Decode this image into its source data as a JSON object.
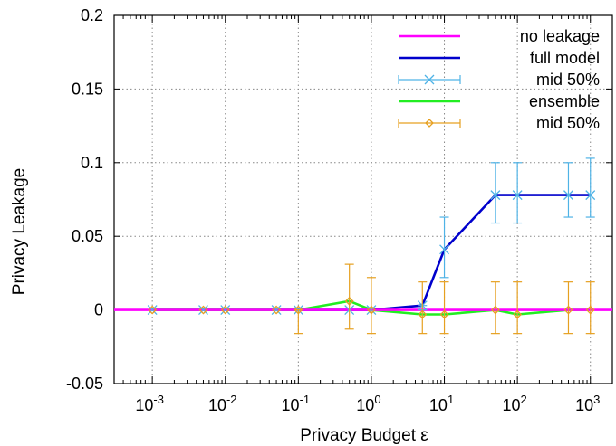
{
  "chart_data": {
    "type": "line",
    "xlabel": "Privacy Budget ε",
    "ylabel": "Privacy Leakage",
    "xscale": "log",
    "xlim": [
      0.0003,
      2000
    ],
    "ylim": [
      -0.05,
      0.2
    ],
    "grid": true,
    "legend_position": "top-right",
    "x_ticks": [
      {
        "base": "10",
        "exp": "-3",
        "value": 0.001
      },
      {
        "base": "10",
        "exp": "-2",
        "value": 0.01
      },
      {
        "base": "10",
        "exp": "-1",
        "value": 0.1
      },
      {
        "base": "10",
        "exp": "0",
        "value": 1
      },
      {
        "base": "10",
        "exp": "1",
        "value": 10
      },
      {
        "base": "10",
        "exp": "2",
        "value": 100
      },
      {
        "base": "10",
        "exp": "3",
        "value": 1000
      }
    ],
    "y_ticks": [
      {
        "label": "-0.05",
        "value": -0.05
      },
      {
        "label": "0",
        "value": 0
      },
      {
        "label": "0.05",
        "value": 0.05
      },
      {
        "label": "0.1",
        "value": 0.1
      },
      {
        "label": "0.15",
        "value": 0.15
      },
      {
        "label": "0.2",
        "value": 0.2
      }
    ],
    "series": [
      {
        "name": "no leakage",
        "color": "#ff00ff",
        "style": "line",
        "points": [
          {
            "x": 0.0003,
            "y": 0
          },
          {
            "x": 2000,
            "y": 0
          }
        ]
      },
      {
        "name": "full model",
        "color": "#0000cc",
        "style": "line",
        "points": [
          {
            "x": 0.001,
            "y": 0
          },
          {
            "x": 0.005,
            "y": 0
          },
          {
            "x": 0.01,
            "y": 0
          },
          {
            "x": 0.05,
            "y": 0
          },
          {
            "x": 0.1,
            "y": 0
          },
          {
            "x": 0.5,
            "y": 0
          },
          {
            "x": 1,
            "y": 0
          },
          {
            "x": 5,
            "y": 0.003
          },
          {
            "x": 10,
            "y": 0.041
          },
          {
            "x": 50,
            "y": 0.078
          },
          {
            "x": 100,
            "y": 0.078
          },
          {
            "x": 500,
            "y": 0.078
          },
          {
            "x": 1000,
            "y": 0.078
          }
        ]
      },
      {
        "name": "mid 50%",
        "color": "#4fb3e6",
        "style": "errorbars",
        "marker": "x",
        "points": [
          {
            "x": 0.001,
            "y": 0,
            "low": 0,
            "high": 0
          },
          {
            "x": 0.005,
            "y": 0,
            "low": 0,
            "high": 0
          },
          {
            "x": 0.01,
            "y": 0,
            "low": 0,
            "high": 0
          },
          {
            "x": 0.05,
            "y": 0,
            "low": 0,
            "high": 0
          },
          {
            "x": 0.1,
            "y": 0,
            "low": 0,
            "high": 0
          },
          {
            "x": 0.5,
            "y": 0,
            "low": 0,
            "high": 0
          },
          {
            "x": 1,
            "y": 0,
            "low": 0,
            "high": 0
          },
          {
            "x": 5,
            "y": 0.003,
            "low": 0,
            "high": 0.003
          },
          {
            "x": 10,
            "y": 0.041,
            "low": 0.022,
            "high": 0.063
          },
          {
            "x": 50,
            "y": 0.078,
            "low": 0.059,
            "high": 0.1
          },
          {
            "x": 100,
            "y": 0.078,
            "low": 0.059,
            "high": 0.1
          },
          {
            "x": 500,
            "y": 0.078,
            "low": 0.063,
            "high": 0.1
          },
          {
            "x": 1000,
            "y": 0.078,
            "low": 0.063,
            "high": 0.103
          }
        ]
      },
      {
        "name": "ensemble",
        "color": "#22ee22",
        "style": "line",
        "points": [
          {
            "x": 0.001,
            "y": 0
          },
          {
            "x": 0.005,
            "y": 0
          },
          {
            "x": 0.01,
            "y": 0
          },
          {
            "x": 0.05,
            "y": 0
          },
          {
            "x": 0.1,
            "y": 0
          },
          {
            "x": 0.5,
            "y": 0.006
          },
          {
            "x": 1,
            "y": 0
          },
          {
            "x": 5,
            "y": -0.003
          },
          {
            "x": 10,
            "y": -0.003
          },
          {
            "x": 50,
            "y": 0
          },
          {
            "x": 100,
            "y": -0.003
          },
          {
            "x": 500,
            "y": 0
          },
          {
            "x": 1000,
            "y": 0
          }
        ]
      },
      {
        "name": "mid 50%",
        "color": "#e6a020",
        "style": "errorbars",
        "marker": "diamond",
        "points": [
          {
            "x": 0.001,
            "y": 0,
            "low": 0,
            "high": 0
          },
          {
            "x": 0.005,
            "y": 0,
            "low": 0,
            "high": 0
          },
          {
            "x": 0.01,
            "y": 0,
            "low": 0,
            "high": 0
          },
          {
            "x": 0.05,
            "y": 0,
            "low": 0,
            "high": 0
          },
          {
            "x": 0.1,
            "y": 0,
            "low": -0.016,
            "high": 0
          },
          {
            "x": 0.5,
            "y": 0.006,
            "low": -0.013,
            "high": 0.031
          },
          {
            "x": 1,
            "y": 0,
            "low": -0.016,
            "high": 0.022
          },
          {
            "x": 5,
            "y": -0.003,
            "low": -0.016,
            "high": 0.019
          },
          {
            "x": 10,
            "y": -0.003,
            "low": -0.016,
            "high": 0.019
          },
          {
            "x": 50,
            "y": 0,
            "low": -0.016,
            "high": 0.019
          },
          {
            "x": 100,
            "y": -0.003,
            "low": -0.016,
            "high": 0.019
          },
          {
            "x": 500,
            "y": 0,
            "low": -0.016,
            "high": 0.019
          },
          {
            "x": 1000,
            "y": 0,
            "low": -0.016,
            "high": 0.019
          }
        ]
      }
    ]
  }
}
